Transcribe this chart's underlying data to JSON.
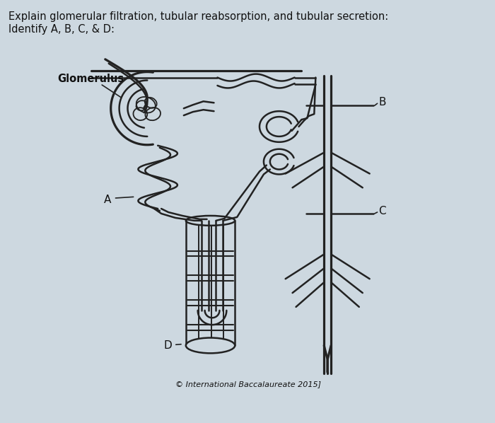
{
  "background_color": "#cdd8e0",
  "text_line1": "Explain glomerular filtration, tubular reabsorption, and tubular secretion:",
  "text_line2": "Identify A, B, C, & D:",
  "label_glomerulus": "Glomerulus",
  "label_A": "A",
  "label_B": "B",
  "label_C": "C",
  "label_D": "D",
  "copyright_text": "© International Baccalaureate 2015]",
  "line_color": "#222222",
  "line_width": 1.8,
  "text_color": "#111111",
  "font_size_main": 10.5,
  "font_size_label": 10
}
